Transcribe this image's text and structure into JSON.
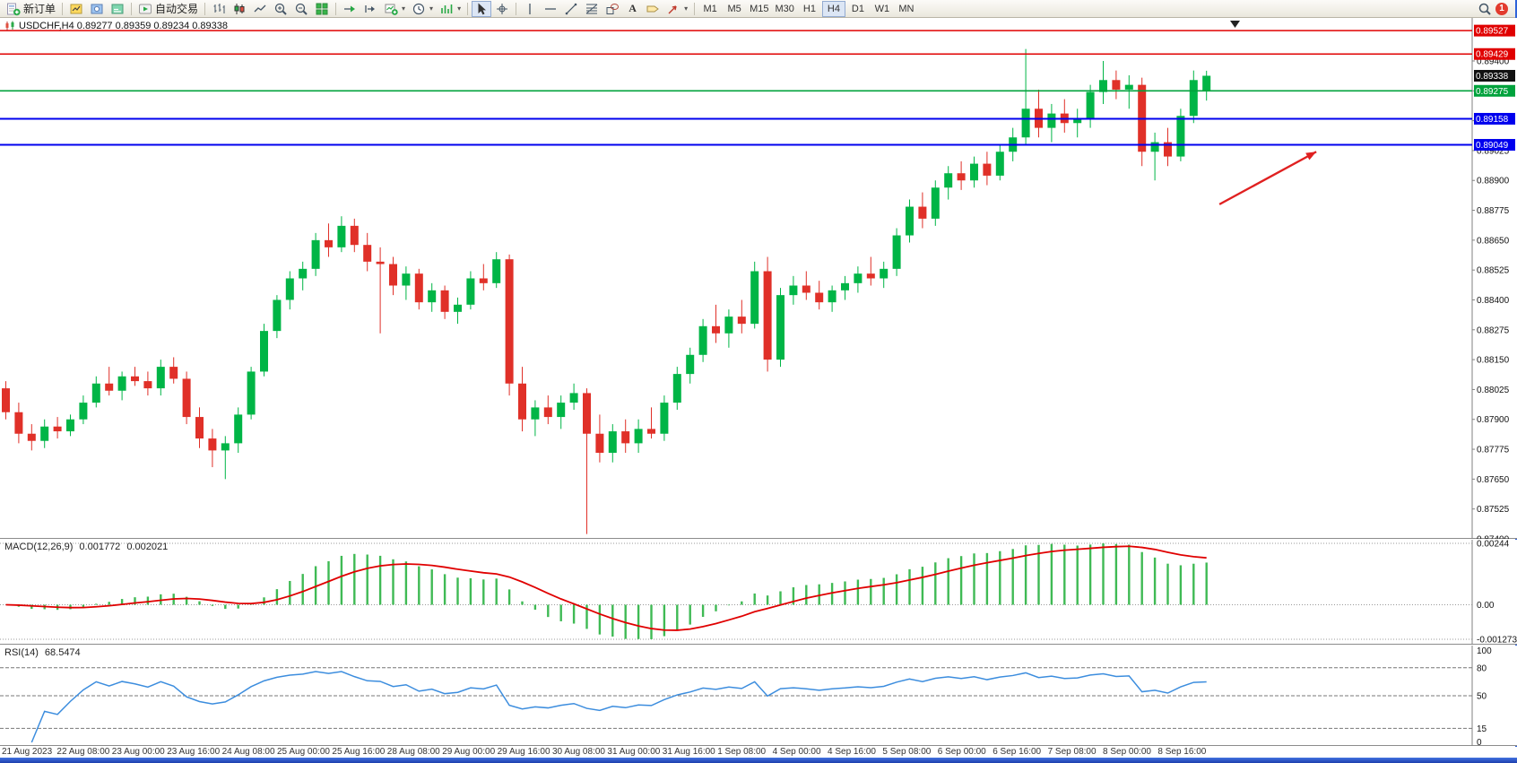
{
  "toolbar": {
    "new_order_label": "新订单",
    "autotrading_label": "自动交易",
    "text_tool_label": "A",
    "timeframes": [
      "M1",
      "M5",
      "M15",
      "M30",
      "H1",
      "H4",
      "D1",
      "W1",
      "MN"
    ],
    "active_timeframe": "H4",
    "notification_count": "1",
    "icons": [
      "new-order-icon",
      "market-watch-icon",
      "navigator-icon",
      "terminal-icon",
      "autotrading-icon",
      "bar-chart-type-icon",
      "candlestick-type-icon",
      "line-chart-type-icon",
      "zoom-in-icon",
      "zoom-out-icon",
      "tile-windows-icon",
      "auto-scroll-icon",
      "chart-shift-icon",
      "new-chart-icon",
      "period-clock-icon",
      "indicators-icon",
      "cursor-icon",
      "crosshair-icon",
      "vertical-line-icon",
      "horizontal-line-icon",
      "trendline-icon",
      "fibonacci-icon",
      "shapes-icon",
      "text-icon",
      "text-label-icon",
      "arrows-tool-icon",
      "search-icon",
      "notification-icon"
    ]
  },
  "chart": {
    "title": "USDCHF,H4 0.89277 0.89359 0.89234 0.89338",
    "symbol": "USDCHF",
    "period": "H4",
    "open": "0.89277",
    "high": "0.89359",
    "low": "0.89234",
    "close": "0.89338"
  },
  "macd": {
    "label": "MACD(12,26,9)",
    "value_main": "0.001772",
    "value_signal": "0.002021",
    "axis": [
      "0.00244",
      "0.00",
      "-0.001273"
    ],
    "histogram_color": "#3fba54",
    "signal_color": "#e00000"
  },
  "rsi": {
    "label": "RSI(14)",
    "value": "68.5474",
    "axis": [
      [
        100,
        "100"
      ],
      [
        80,
        "80"
      ],
      [
        50,
        "50"
      ],
      [
        15,
        "15"
      ],
      [
        0,
        "0"
      ]
    ],
    "levels": [
      80,
      50,
      15
    ],
    "line_color": "#3c8dde"
  },
  "chart_data": {
    "type": "candlestick",
    "symbol": "USDCHF",
    "timeframe": "H4",
    "price_min": 0.874,
    "price_max": 0.8958,
    "axis_ticks_start": 0.874,
    "axis_tick_step": 0.00125,
    "axis_tick_count": 17,
    "up_color": "#00b546",
    "down_color": "#e03028",
    "levels": [
      {
        "price": 0.89527,
        "color": "#e00000",
        "label": "0.89527",
        "width": 1.4
      },
      {
        "price": 0.89429,
        "color": "#e00000",
        "label": "0.89429",
        "width": 1.4
      },
      {
        "price": 0.89338,
        "color": "#111111",
        "label": "0.89338",
        "badge_only": true
      },
      {
        "price": 0.89275,
        "color": "#00a23c",
        "label": "0.89275",
        "width": 1.6
      },
      {
        "price": 0.89158,
        "color": "#0000ee",
        "label": "0.89158",
        "width": 2
      },
      {
        "price": 0.89049,
        "color": "#0000ee",
        "label": "0.89049",
        "width": 2
      }
    ],
    "annotation_arrow": {
      "from_bar": 94,
      "from_price": 0.888,
      "to_bar": 101.5,
      "to_price": 0.8902,
      "color": "#e02020"
    },
    "time_labels": [
      "21 Aug 2023",
      "22 Aug 08:00",
      "23 Aug 00:00",
      "23 Aug 16:00",
      "24 Aug 08:00",
      "25 Aug 00:00",
      "25 Aug 16:00",
      "28 Aug 08:00",
      "29 Aug 00:00",
      "29 Aug 16:00",
      "30 Aug 08:00",
      "31 Aug 00:00",
      "31 Aug 16:00",
      "1 Sep 08:00",
      "4 Sep 00:00",
      "4 Sep 16:00",
      "5 Sep 08:00",
      "6 Sep 00:00",
      "6 Sep 16:00",
      "7 Sep 08:00",
      "8 Sep 00:00",
      "8 Sep 16:00"
    ],
    "candles": [
      [
        0.8803,
        0.8806,
        0.879,
        0.8793
      ],
      [
        0.8793,
        0.8797,
        0.878,
        0.8784
      ],
      [
        0.8784,
        0.8788,
        0.8777,
        0.8781
      ],
      [
        0.8781,
        0.879,
        0.8778,
        0.8787
      ],
      [
        0.8787,
        0.8791,
        0.8782,
        0.8785
      ],
      [
        0.8785,
        0.8792,
        0.8783,
        0.879
      ],
      [
        0.879,
        0.88,
        0.8788,
        0.8797
      ],
      [
        0.8797,
        0.8808,
        0.8795,
        0.8805
      ],
      [
        0.8805,
        0.8812,
        0.88,
        0.8802
      ],
      [
        0.8802,
        0.881,
        0.8798,
        0.8808
      ],
      [
        0.8808,
        0.8812,
        0.8804,
        0.8806
      ],
      [
        0.8806,
        0.881,
        0.88,
        0.8803
      ],
      [
        0.8803,
        0.8815,
        0.88,
        0.8812
      ],
      [
        0.8812,
        0.8816,
        0.8805,
        0.8807
      ],
      [
        0.8807,
        0.881,
        0.8788,
        0.8791
      ],
      [
        0.8791,
        0.8795,
        0.8778,
        0.8782
      ],
      [
        0.8782,
        0.8786,
        0.877,
        0.8777
      ],
      [
        0.8777,
        0.8783,
        0.8765,
        0.878
      ],
      [
        0.878,
        0.8795,
        0.8776,
        0.8792
      ],
      [
        0.8792,
        0.8812,
        0.879,
        0.881
      ],
      [
        0.881,
        0.883,
        0.8808,
        0.8827
      ],
      [
        0.8827,
        0.8842,
        0.8824,
        0.884
      ],
      [
        0.884,
        0.8852,
        0.8836,
        0.8849
      ],
      [
        0.8849,
        0.8856,
        0.8844,
        0.8853
      ],
      [
        0.8853,
        0.8868,
        0.885,
        0.8865
      ],
      [
        0.8865,
        0.8872,
        0.8858,
        0.8862
      ],
      [
        0.8862,
        0.8875,
        0.886,
        0.8871
      ],
      [
        0.8871,
        0.8874,
        0.886,
        0.8863
      ],
      [
        0.8863,
        0.8868,
        0.8852,
        0.8856
      ],
      [
        0.8856,
        0.8862,
        0.8826,
        0.8855
      ],
      [
        0.8855,
        0.8858,
        0.8842,
        0.8846
      ],
      [
        0.8846,
        0.8854,
        0.884,
        0.8851
      ],
      [
        0.8851,
        0.8853,
        0.8836,
        0.8839
      ],
      [
        0.8839,
        0.8847,
        0.8835,
        0.8844
      ],
      [
        0.8844,
        0.8846,
        0.8832,
        0.8835
      ],
      [
        0.8835,
        0.8841,
        0.883,
        0.8838
      ],
      [
        0.8838,
        0.8852,
        0.8836,
        0.8849
      ],
      [
        0.8849,
        0.8855,
        0.8844,
        0.8847
      ],
      [
        0.8847,
        0.886,
        0.8845,
        0.8857
      ],
      [
        0.8857,
        0.8859,
        0.88,
        0.8805
      ],
      [
        0.8805,
        0.8812,
        0.8785,
        0.879
      ],
      [
        0.879,
        0.8798,
        0.8783,
        0.8795
      ],
      [
        0.8795,
        0.88,
        0.8788,
        0.8791
      ],
      [
        0.8791,
        0.88,
        0.8786,
        0.8797
      ],
      [
        0.8797,
        0.8805,
        0.8794,
        0.8801
      ],
      [
        0.8801,
        0.8803,
        0.8742,
        0.8784
      ],
      [
        0.8784,
        0.8792,
        0.8772,
        0.8776
      ],
      [
        0.8776,
        0.8788,
        0.8772,
        0.8785
      ],
      [
        0.8785,
        0.879,
        0.8776,
        0.878
      ],
      [
        0.878,
        0.879,
        0.8776,
        0.8786
      ],
      [
        0.8786,
        0.8795,
        0.8782,
        0.8784
      ],
      [
        0.8784,
        0.88,
        0.8781,
        0.8797
      ],
      [
        0.8797,
        0.8812,
        0.8794,
        0.8809
      ],
      [
        0.8809,
        0.882,
        0.8805,
        0.8817
      ],
      [
        0.8817,
        0.8832,
        0.8814,
        0.8829
      ],
      [
        0.8829,
        0.8838,
        0.8822,
        0.8826
      ],
      [
        0.8826,
        0.8836,
        0.882,
        0.8833
      ],
      [
        0.8833,
        0.884,
        0.8826,
        0.883
      ],
      [
        0.883,
        0.8856,
        0.8828,
        0.8852
      ],
      [
        0.8852,
        0.8858,
        0.881,
        0.8815
      ],
      [
        0.8815,
        0.8845,
        0.8812,
        0.8842
      ],
      [
        0.8842,
        0.885,
        0.8838,
        0.8846
      ],
      [
        0.8846,
        0.8852,
        0.884,
        0.8843
      ],
      [
        0.8843,
        0.8848,
        0.8836,
        0.8839
      ],
      [
        0.8839,
        0.8846,
        0.8835,
        0.8844
      ],
      [
        0.8844,
        0.885,
        0.884,
        0.8847
      ],
      [
        0.8847,
        0.8854,
        0.8843,
        0.8851
      ],
      [
        0.8851,
        0.8858,
        0.8846,
        0.8849
      ],
      [
        0.8849,
        0.8856,
        0.8845,
        0.8853
      ],
      [
        0.8853,
        0.887,
        0.885,
        0.8867
      ],
      [
        0.8867,
        0.8882,
        0.8864,
        0.8879
      ],
      [
        0.8879,
        0.8885,
        0.887,
        0.8874
      ],
      [
        0.8874,
        0.889,
        0.8871,
        0.8887
      ],
      [
        0.8887,
        0.8896,
        0.8882,
        0.8893
      ],
      [
        0.8893,
        0.8898,
        0.8886,
        0.889
      ],
      [
        0.889,
        0.89,
        0.8887,
        0.8897
      ],
      [
        0.8897,
        0.8902,
        0.8888,
        0.8892
      ],
      [
        0.8892,
        0.8905,
        0.889,
        0.8902
      ],
      [
        0.8902,
        0.8912,
        0.8898,
        0.8908
      ],
      [
        0.8908,
        0.8945,
        0.8905,
        0.892
      ],
      [
        0.892,
        0.8928,
        0.8908,
        0.8912
      ],
      [
        0.8912,
        0.8922,
        0.8906,
        0.8918
      ],
      [
        0.8918,
        0.8924,
        0.891,
        0.8914
      ],
      [
        0.8914,
        0.892,
        0.8908,
        0.8916
      ],
      [
        0.8916,
        0.893,
        0.8912,
        0.8927
      ],
      [
        0.8927,
        0.894,
        0.8922,
        0.8932
      ],
      [
        0.8932,
        0.8936,
        0.8924,
        0.8928
      ],
      [
        0.8928,
        0.8934,
        0.892,
        0.893
      ],
      [
        0.893,
        0.8933,
        0.8896,
        0.8902
      ],
      [
        0.8902,
        0.891,
        0.889,
        0.8906
      ],
      [
        0.8906,
        0.8912,
        0.8896,
        0.89
      ],
      [
        0.89,
        0.892,
        0.8898,
        0.8917
      ],
      [
        0.8917,
        0.8936,
        0.8914,
        0.8932
      ],
      [
        0.89277,
        0.89359,
        0.89234,
        0.89338
      ]
    ]
  }
}
